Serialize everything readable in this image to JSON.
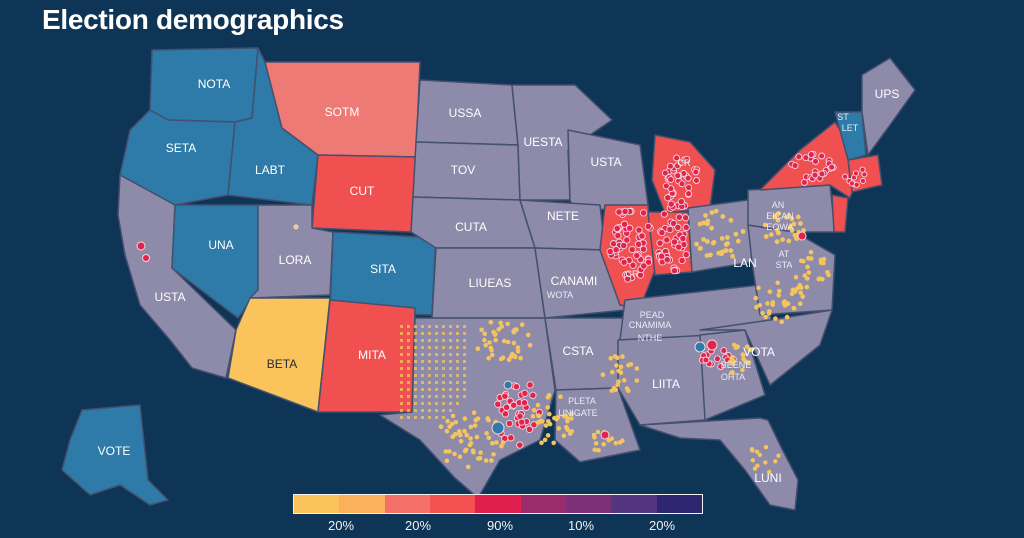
{
  "title": "Election demographics",
  "colors": {
    "background": "#0f3556",
    "neutral": "#8e8aaa",
    "blue": "#2e7aa8",
    "red": "#f0504f",
    "salmon": "#ee7a76",
    "yellow": "#fbc35b",
    "hotspot_red": "#e0244f",
    "hotspot_yellow": "#f4c55e"
  },
  "legend": {
    "swatches": [
      "#fbc35b",
      "#fab15a",
      "#f47068",
      "#f2514f",
      "#e11f4e",
      "#9b2c6c",
      "#7d3078",
      "#53357f",
      "#2e2570"
    ],
    "labels": [
      "20%",
      "20%",
      "90%",
      "10%",
      "20%"
    ]
  },
  "states": [
    {
      "id": "wa",
      "label": "NOTA",
      "fill": "blue"
    },
    {
      "id": "or",
      "label": "SETA",
      "fill": "blue"
    },
    {
      "id": "ca",
      "label": "USTA",
      "fill": "neutral"
    },
    {
      "id": "nv",
      "label": "UNA",
      "fill": "blue"
    },
    {
      "id": "id",
      "label": "LABT",
      "fill": "blue"
    },
    {
      "id": "mt",
      "label": "SOTM",
      "fill": "salmon"
    },
    {
      "id": "wy",
      "label": "CUT",
      "fill": "red"
    },
    {
      "id": "ut",
      "label": "LORA",
      "fill": "neutral"
    },
    {
      "id": "co",
      "label": "SITA",
      "fill": "blue"
    },
    {
      "id": "az",
      "label": "BETA",
      "fill": "yellow"
    },
    {
      "id": "nm",
      "label": "MITA",
      "fill": "red"
    },
    {
      "id": "nd",
      "label": "USSA",
      "fill": "neutral"
    },
    {
      "id": "sd",
      "label": "TOV",
      "fill": "neutral"
    },
    {
      "id": "ne",
      "label": "CUTA",
      "fill": "neutral"
    },
    {
      "id": "ks",
      "label": "LIUEAS",
      "fill": "neutral"
    },
    {
      "id": "mn",
      "label": "UESTA",
      "fill": "neutral"
    },
    {
      "id": "wi",
      "label": "USTA",
      "fill": "neutral"
    },
    {
      "id": "ia",
      "label": "NETE",
      "fill": "neutral"
    },
    {
      "id": "mo",
      "label": "CANAMI",
      "fill": "neutral"
    },
    {
      "id": "ar",
      "label": "CSTA",
      "fill": "neutral"
    },
    {
      "id": "ms",
      "label": "LIITA",
      "fill": "neutral"
    },
    {
      "id": "in",
      "label": "LAN",
      "fill": "neutral"
    },
    {
      "id": "nc",
      "label": "VOTA",
      "fill": "neutral"
    },
    {
      "id": "fl",
      "label": "LUNI",
      "fill": "neutral"
    },
    {
      "id": "ak",
      "label": "VOTE",
      "fill": "blue"
    },
    {
      "id": "me",
      "label": "UPS",
      "fill": "neutral"
    }
  ],
  "small_labels": [
    "WOTA",
    "CNAMIMA",
    "NTHE",
    "PEAD",
    "CR",
    "AN",
    "EICAN",
    "EOWA",
    "AT",
    "LET",
    "STA",
    "PLETA",
    "BEENE",
    "OHTA",
    "CR",
    "ST",
    "UNIGATE"
  ]
}
